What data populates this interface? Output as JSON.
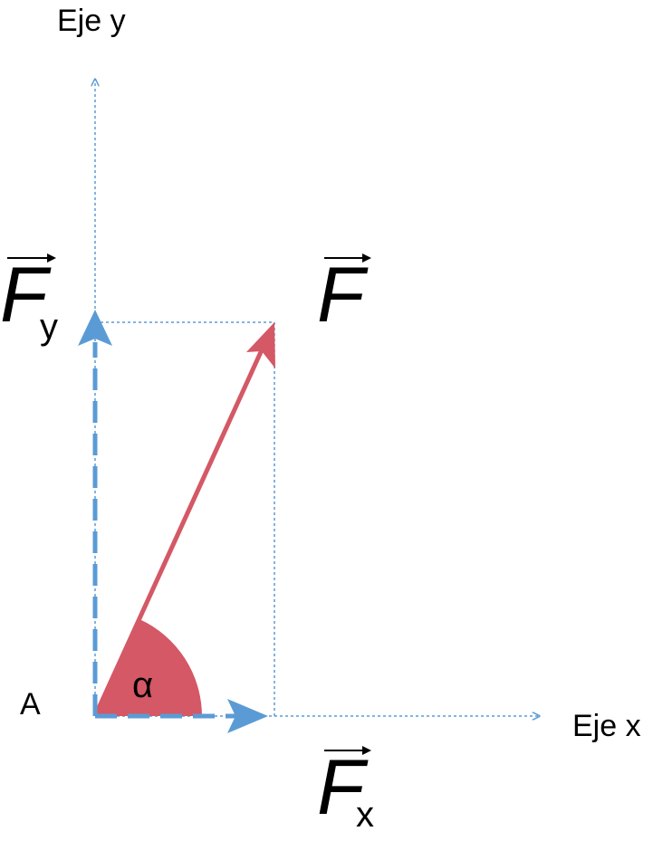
{
  "labels": {
    "y_axis": "Eje y",
    "x_axis": "Eje x",
    "origin": "A",
    "angle": "α"
  },
  "vectors": [
    {
      "symbol": "F"
    },
    {
      "symbol": "F",
      "subscript": "y"
    },
    {
      "symbol": "F",
      "subscript": "x"
    }
  ]
}
